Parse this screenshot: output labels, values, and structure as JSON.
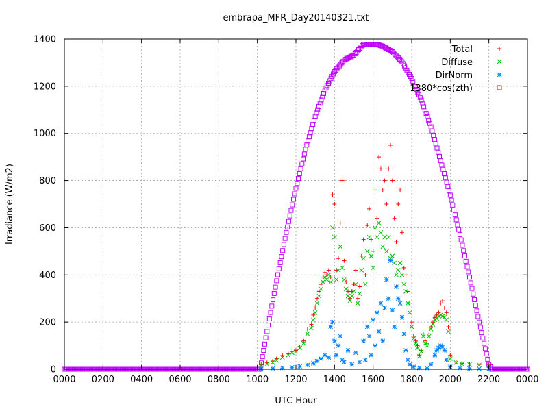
{
  "chart_data": {
    "type": "scatter",
    "title": "embrapa_MFR_Day20140321.txt",
    "xlabel": "UTC Hour",
    "ylabel": "Irradiance (W/m2)",
    "xlim": [
      0,
      24
    ],
    "ylim": [
      0,
      1400
    ],
    "x_ticks": [
      0,
      2,
      4,
      6,
      8,
      10,
      12,
      14,
      16,
      18,
      20,
      22,
      24
    ],
    "x_tick_labels": [
      "0000",
      "0200",
      "0400",
      "0600",
      "0800",
      "1000",
      "1200",
      "1400",
      "1600",
      "1800",
      "2000",
      "2200",
      "0000"
    ],
    "y_ticks": [
      0,
      200,
      400,
      600,
      800,
      1000,
      1200,
      1400
    ],
    "y_tick_labels": [
      "0",
      "200",
      "400",
      "600",
      "800",
      "1000",
      "1200",
      "1400"
    ],
    "grid": true,
    "legend_position": "top-right",
    "series": [
      {
        "name": "Total",
        "marker": "plus",
        "color": "#ff0000",
        "x": [
          10.2,
          10.5,
          10.8,
          11.0,
          11.3,
          11.6,
          11.8,
          12.0,
          12.2,
          12.4,
          12.6,
          12.8,
          12.9,
          13.0,
          13.1,
          13.2,
          13.3,
          13.4,
          13.5,
          13.6,
          13.7,
          13.8,
          13.9,
          14.0,
          14.1,
          14.2,
          14.3,
          14.4,
          14.5,
          14.6,
          14.7,
          14.8,
          14.9,
          15.0,
          15.1,
          15.2,
          15.3,
          15.4,
          15.5,
          15.6,
          15.7,
          15.8,
          15.9,
          16.0,
          16.1,
          16.2,
          16.3,
          16.4,
          16.5,
          16.6,
          16.7,
          16.8,
          16.9,
          17.0,
          17.1,
          17.2,
          17.3,
          17.4,
          17.5,
          17.6,
          17.7,
          17.8,
          17.9,
          18.0,
          18.1,
          18.2,
          18.3,
          18.4,
          18.5,
          18.6,
          18.7,
          18.8,
          18.9,
          19.0,
          19.1,
          19.2,
          19.3,
          19.4,
          19.5,
          19.6,
          19.7,
          19.8,
          19.9,
          20.0,
          20.3,
          20.6,
          21.0,
          21.5,
          22.0
        ],
        "values": [
          20,
          28,
          35,
          45,
          58,
          66,
          75,
          80,
          95,
          120,
          170,
          190,
          230,
          260,
          300,
          330,
          360,
          390,
          410,
          400,
          420,
          390,
          740,
          700,
          420,
          470,
          620,
          800,
          460,
          370,
          330,
          300,
          330,
          360,
          420,
          300,
          350,
          480,
          550,
          400,
          610,
          680,
          550,
          500,
          760,
          640,
          900,
          850,
          760,
          800,
          700,
          850,
          950,
          800,
          640,
          540,
          700,
          760,
          580,
          430,
          400,
          330,
          280,
          200,
          140,
          120,
          100,
          60,
          80,
          150,
          120,
          110,
          150,
          180,
          200,
          220,
          230,
          240,
          280,
          290,
          260,
          240,
          180,
          60,
          30,
          25,
          22,
          20,
          18
        ]
      },
      {
        "name": "Diffuse",
        "marker": "cross",
        "color": "#00c000",
        "x": [
          10.2,
          10.5,
          10.8,
          11.0,
          11.3,
          11.6,
          11.8,
          12.0,
          12.2,
          12.4,
          12.6,
          12.8,
          12.9,
          13.0,
          13.1,
          13.2,
          13.3,
          13.4,
          13.5,
          13.6,
          13.7,
          13.8,
          13.9,
          14.0,
          14.1,
          14.2,
          14.3,
          14.4,
          14.5,
          14.6,
          14.7,
          14.8,
          14.9,
          15.0,
          15.1,
          15.2,
          15.3,
          15.4,
          15.5,
          15.6,
          15.7,
          15.8,
          15.9,
          16.0,
          16.1,
          16.2,
          16.3,
          16.4,
          16.5,
          16.6,
          16.7,
          16.8,
          16.9,
          17.0,
          17.1,
          17.2,
          17.3,
          17.4,
          17.5,
          17.6,
          17.7,
          17.8,
          17.9,
          18.0,
          18.1,
          18.2,
          18.3,
          18.4,
          18.5,
          18.6,
          18.7,
          18.8,
          18.9,
          19.0,
          19.1,
          19.2,
          19.3,
          19.4,
          19.5,
          19.6,
          19.7,
          19.8,
          19.9,
          20.0,
          20.3,
          20.6,
          21.0,
          21.5,
          22.0
        ],
        "values": [
          15,
          22,
          28,
          38,
          50,
          60,
          70,
          75,
          90,
          110,
          150,
          175,
          210,
          240,
          280,
          310,
          340,
          370,
          390,
          380,
          400,
          370,
          600,
          560,
          380,
          420,
          520,
          430,
          380,
          340,
          310,
          290,
          310,
          330,
          360,
          280,
          320,
          420,
          470,
          360,
          500,
          560,
          480,
          430,
          600,
          560,
          620,
          580,
          520,
          560,
          500,
          560,
          470,
          480,
          450,
          400,
          420,
          450,
          400,
          360,
          330,
          280,
          240,
          180,
          130,
          110,
          90,
          55,
          75,
          140,
          110,
          100,
          140,
          170,
          190,
          210,
          215,
          225,
          230,
          225,
          220,
          210,
          160,
          45,
          28,
          22,
          20,
          18,
          16
        ]
      },
      {
        "name": "DirNorm",
        "marker": "star",
        "color": "#0080ff",
        "x": [
          10.2,
          10.8,
          11.3,
          11.8,
          12.2,
          12.6,
          12.9,
          13.1,
          13.3,
          13.5,
          13.7,
          13.8,
          13.9,
          14.0,
          14.1,
          14.2,
          14.3,
          14.4,
          14.5,
          14.7,
          14.9,
          15.1,
          15.3,
          15.5,
          15.6,
          15.7,
          15.8,
          15.9,
          16.0,
          16.1,
          16.2,
          16.3,
          16.4,
          16.5,
          16.6,
          16.7,
          16.8,
          16.9,
          17.0,
          17.1,
          17.2,
          17.3,
          17.4,
          17.5,
          17.6,
          17.7,
          17.8,
          17.9,
          18.1,
          18.4,
          18.8,
          19.0,
          19.2,
          19.3,
          19.4,
          19.5,
          19.6,
          19.7,
          19.8,
          20.0,
          20.5,
          21.0,
          21.5,
          22.0
        ],
        "values": [
          2,
          3,
          5,
          8,
          12,
          18,
          25,
          35,
          45,
          60,
          50,
          180,
          200,
          120,
          60,
          100,
          140,
          40,
          30,
          80,
          20,
          70,
          30,
          120,
          40,
          180,
          140,
          60,
          210,
          100,
          240,
          160,
          280,
          120,
          260,
          380,
          300,
          460,
          250,
          180,
          350,
          300,
          280,
          220,
          150,
          80,
          40,
          20,
          10,
          5,
          4,
          20,
          60,
          80,
          90,
          100,
          95,
          80,
          40,
          10,
          5,
          3,
          2,
          1
        ]
      },
      {
        "name": "1380*cos(zth)",
        "marker": "square",
        "color": "#c000ff",
        "x": [
          0,
          1,
          2,
          3,
          4,
          5,
          6,
          7,
          8,
          9,
          10,
          10.15,
          10.5,
          11,
          11.5,
          12,
          12.5,
          13,
          13.5,
          14,
          14.5,
          15,
          15.5,
          16.15,
          16.5,
          17,
          17.5,
          18,
          18.5,
          19,
          19.5,
          20,
          20.5,
          21,
          21.5,
          22,
          22.15,
          23,
          24
        ],
        "values": [
          0,
          0,
          0,
          0,
          0,
          0,
          0,
          0,
          0,
          0,
          0,
          0,
          160,
          375,
          580,
          767,
          933,
          1073,
          1183,
          1262,
          1311,
          1332,
          1378,
          1378,
          1370,
          1346,
          1304,
          1233,
          1141,
          1028,
          884,
          738,
          571,
          390,
          200,
          20,
          0,
          0,
          0
        ]
      }
    ]
  }
}
